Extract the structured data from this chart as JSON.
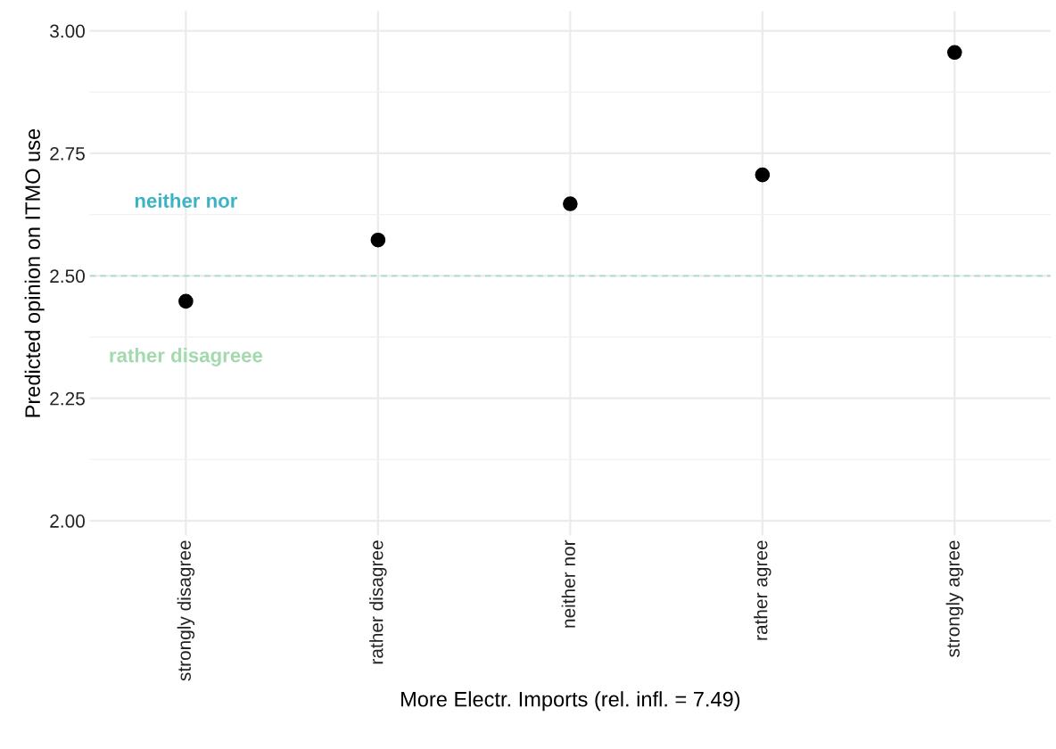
{
  "chart_data": {
    "type": "scatter",
    "xlabel": "More Electr. Imports (rel. infl. = 7.49)",
    "ylabel": "Predicted opinion on ITMO use",
    "categories": [
      "strongly disagree",
      "rather disagree",
      "neither nor",
      "rather agree",
      "strongly agree"
    ],
    "series": [
      {
        "color": "#000000",
        "values": [
          2.448,
          2.573,
          2.647,
          2.706,
          2.956
        ]
      }
    ],
    "ylim": [
      1.97,
      3.04
    ],
    "yticks": [
      {
        "value": 2.0,
        "label": "2.00"
      },
      {
        "value": 2.25,
        "label": "2.25"
      },
      {
        "value": 2.5,
        "label": "2.50"
      },
      {
        "value": 2.75,
        "label": "2.75"
      },
      {
        "value": 3.0,
        "label": "3.00"
      }
    ],
    "ref_lines": [
      {
        "axis": "y",
        "value": 2.5,
        "color": "#a8dcc8",
        "line_style": "dashed"
      }
    ],
    "annotations": [
      "neither nor",
      "rather disagreee"
    ],
    "grid": true,
    "marker": "circle",
    "legend": false
  }
}
